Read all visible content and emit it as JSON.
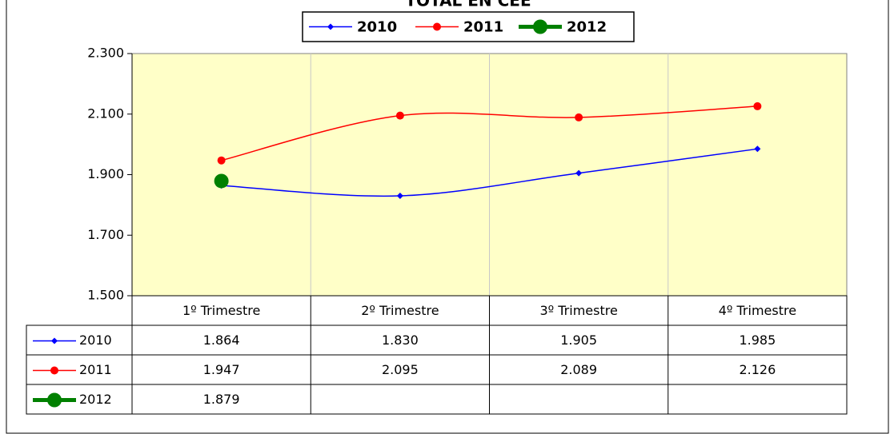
{
  "chart_data": {
    "type": "line",
    "title": "TOTAL EN CEE",
    "categories": [
      "1º Trimestre",
      "2º Trimestre",
      "3º Trimestre",
      "4º Trimestre"
    ],
    "series": [
      {
        "name": "2010",
        "color": "#0000ff",
        "values": [
          1864,
          1830,
          1905,
          1985
        ],
        "value_labels": [
          "1.864",
          "1.830",
          "1.905",
          "1.985"
        ]
      },
      {
        "name": "2011",
        "color": "#ff0000",
        "values": [
          1947,
          2095,
          2089,
          2126
        ],
        "value_labels": [
          "1.947",
          "2.095",
          "2.089",
          "2.126"
        ]
      },
      {
        "name": "2012",
        "color": "#008000",
        "values": [
          1879,
          null,
          null,
          null
        ],
        "value_labels": [
          "1.879",
          null,
          null,
          null
        ]
      }
    ],
    "ylim": [
      1500,
      2300
    ],
    "yticks": [
      {
        "value": 1500,
        "label": "1.500"
      },
      {
        "value": 1700,
        "label": "1.700"
      },
      {
        "value": 1900,
        "label": "1.900"
      },
      {
        "value": 2100,
        "label": "2.100"
      },
      {
        "value": 2300,
        "label": "2.300"
      }
    ],
    "grid": true,
    "legend": "top",
    "plot_background": "#ffffc8"
  }
}
